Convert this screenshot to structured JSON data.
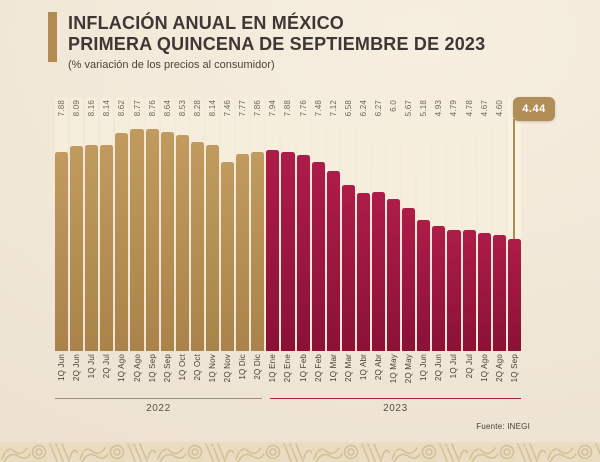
{
  "header": {
    "title_line1": "INFLACIÓN ANUAL EN MÉXICO",
    "title_line2": "PRIMERA QUINCENA DE SEPTIEMBRE DE 2023",
    "subtitle": "(% variación de los precios al consumidor)"
  },
  "chart_data": {
    "type": "bar",
    "title": "Inflación anual en México — Primera quincena de septiembre de 2023",
    "ylabel": "% variación de los precios al consumidor",
    "ylim": [
      0,
      9
    ],
    "grid": false,
    "legend_position": "none",
    "categories": [
      "1Q Jun",
      "2Q Jun",
      "1Q Jul",
      "2Q Jul",
      "1Q Ago",
      "2Q Ago",
      "1Q Sep",
      "2Q Sep",
      "1Q Oct",
      "2Q Oct",
      "1Q Nov",
      "2Q Nov",
      "1Q Dic",
      "2Q Dic",
      "1Q Ene",
      "2Q Ene",
      "1Q Feb",
      "2Q Feb",
      "1Q Mar",
      "2Q Mar",
      "1Q Abr",
      "2Q Abr",
      "1Q May",
      "2Q May",
      "1Q Jun",
      "2Q Jun",
      "1Q Jul",
      "2Q Jul",
      "1Q Ago",
      "2Q Ago",
      "1Q Sep"
    ],
    "values": [
      7.88,
      8.09,
      8.16,
      8.14,
      8.62,
      8.77,
      8.76,
      8.64,
      8.53,
      8.28,
      8.14,
      7.46,
      7.77,
      7.86,
      7.94,
      7.88,
      7.76,
      7.48,
      7.12,
      6.58,
      6.24,
      6.27,
      6.0,
      5.67,
      5.18,
      4.93,
      4.79,
      4.78,
      4.67,
      4.6,
      4.44
    ],
    "value_labels": [
      "7.88",
      "8.09",
      "8.16",
      "8.14",
      "8.62",
      "8.77",
      "8.76",
      "8.64",
      "8.53",
      "8.28",
      "8.14",
      "7.46",
      "7.77",
      "7.86",
      "7.94",
      "7.88",
      "7.76",
      "7.48",
      "7.12",
      "6.58",
      "6.24",
      "6.27",
      "6.0",
      "5.67",
      "5.18",
      "4.93",
      "4.79",
      "4.78",
      "4.67",
      "4.60",
      "4.44"
    ],
    "series_groups": [
      {
        "year": "2022",
        "from_index": 0,
        "to_index": 13,
        "color": "#C19A5E",
        "color_dark": "#A98349",
        "line_color": "#97907F"
      },
      {
        "year": "2023",
        "from_index": 14,
        "to_index": 30,
        "color": "#AD1C48",
        "color_dark": "#8B1136",
        "line_color": "#A32045"
      }
    ],
    "highlight": {
      "index": 30,
      "badge_label": "4.44",
      "badge_color": "#B18E58"
    }
  },
  "footer": {
    "source_label": "Fuente: INEGI"
  },
  "colors": {
    "background": "#F1E7D8",
    "column_track": "#F5EEDC",
    "accent_bar": "#B18B50",
    "title_text": "#3D3833",
    "badge": "#B18E58",
    "pattern_stroke": "#D3BF97",
    "pattern_background": "#E9DCC0"
  }
}
